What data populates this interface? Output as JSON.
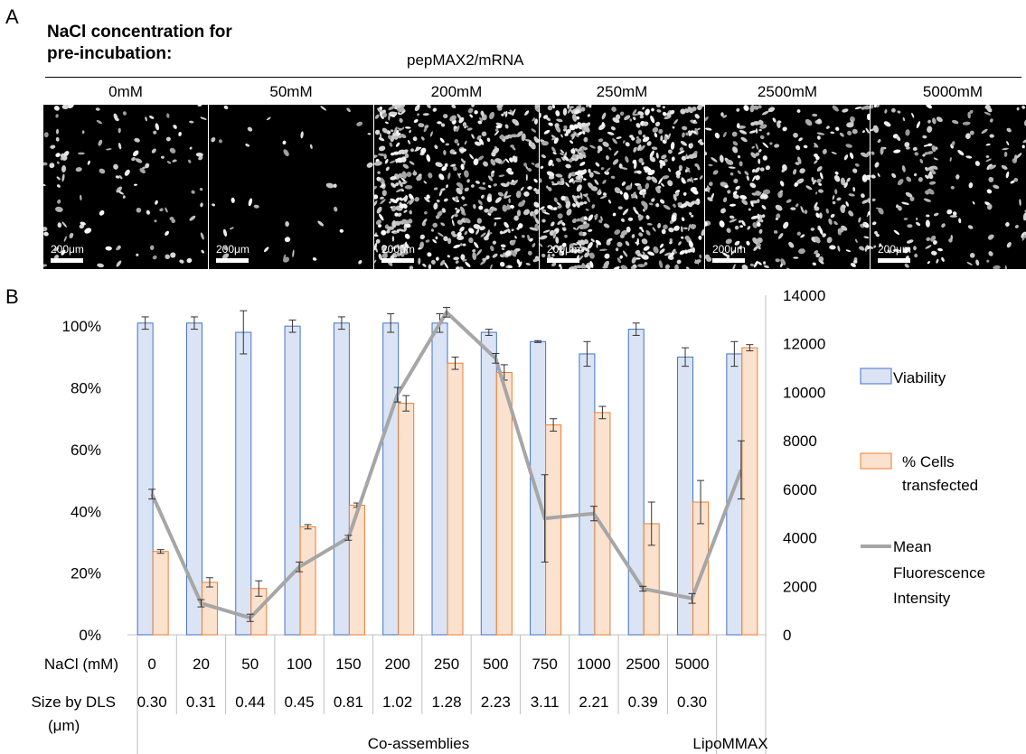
{
  "panelA": {
    "letter": "A",
    "heading_line1": "NaCl concentration for",
    "heading_line2": "pre-incubation:",
    "subheading": "pepMAX2/mRNA",
    "concentrations": [
      "0mM",
      "50mM",
      "200mM",
      "250mM",
      "2500mM",
      "5000mM"
    ],
    "scale_bar": "200μm",
    "cell_density": [
      0.18,
      0.03,
      0.9,
      0.95,
      0.5,
      0.3
    ]
  },
  "panelB": {
    "letter": "B"
  },
  "chart_data": {
    "type": "bar",
    "categories": [
      "0",
      "20",
      "50",
      "100",
      "150",
      "200",
      "250",
      "500",
      "750",
      "1000",
      "2500",
      "5000",
      "LipoMMAX"
    ],
    "series": [
      {
        "name": "Viability",
        "axis": "left",
        "values": [
          101,
          101,
          98,
          100,
          101,
          101,
          101,
          98,
          95,
          91,
          99,
          90,
          91
        ],
        "errors": [
          2,
          2,
          7,
          2,
          2,
          3,
          3,
          1,
          0.3,
          4,
          2,
          3,
          4
        ],
        "color": "#dbe4f5",
        "stroke": "#4472c4"
      },
      {
        "name": "% Cells transfected",
        "axis": "left",
        "values": [
          27,
          17,
          15,
          35,
          42,
          75,
          88,
          85,
          68,
          72,
          36,
          43,
          93
        ],
        "errors": [
          0.6,
          1.5,
          2.5,
          0.7,
          0.7,
          2.5,
          2,
          2.5,
          2,
          2,
          7,
          7,
          1
        ],
        "color": "#fbe2cf",
        "stroke": "#ed7d31"
      },
      {
        "name": "Mean Fluorescence Intensity",
        "axis": "right",
        "type": "line",
        "values": [
          5800,
          1300,
          700,
          2800,
          4000,
          9900,
          13300,
          11400,
          4800,
          5000,
          1900,
          1500,
          6800
        ],
        "errors": [
          200,
          150,
          150,
          200,
          100,
          300,
          200,
          200,
          1800,
          300,
          100,
          200,
          1200
        ],
        "color": "#a6a6a6"
      }
    ],
    "yleft": {
      "ticks": [
        "0%",
        "20%",
        "40%",
        "60%",
        "80%",
        "100%"
      ],
      "lim": [
        0,
        110
      ]
    },
    "yright": {
      "ticks": [
        "0",
        "2000",
        "4000",
        "6000",
        "8000",
        "10000",
        "12000",
        "14000"
      ],
      "lim": [
        0,
        14000
      ]
    },
    "table": {
      "row1_label": "NaCl (mM)",
      "row1_values": [
        "0",
        "20",
        "50",
        "100",
        "150",
        "200",
        "250",
        "500",
        "750",
        "1000",
        "2500",
        "5000",
        ""
      ],
      "row2_label": "Size by DLS",
      "row2_label_2": "(μm)",
      "row2_values": [
        "0.30",
        "0.31",
        "0.44",
        "0.45",
        "0.81",
        "1.02",
        "1.28",
        "2.23",
        "3.11",
        "2.21",
        "0.39",
        "0.30",
        ""
      ],
      "group1": "Co-assemblies",
      "group2": "LipoMMAX"
    },
    "legend": {
      "viability": "Viability",
      "transfected_1": "% Cells",
      "transfected_2": "transfected",
      "mfi_1": "Mean",
      "mfi_2": "Fluorescence",
      "mfi_3": "Intensity"
    }
  }
}
